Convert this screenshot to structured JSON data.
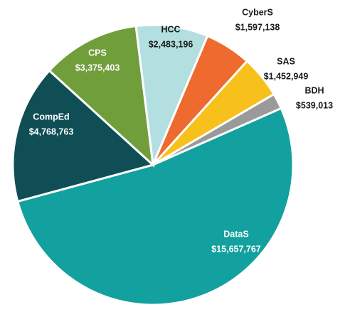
{
  "chart_data": {
    "type": "pie",
    "categories": [
      "HCC",
      "CyberS",
      "SAS",
      "BDH",
      "DataS",
      "CompEd",
      "CPS"
    ],
    "values": [
      2483196,
      1597138,
      1452949,
      539013,
      15657767,
      4768763,
      3375403
    ],
    "value_labels": [
      "$2,483,196",
      "$1,597,138",
      "$1,452,949",
      "$539,013",
      "$15,657,767",
      "$4,768,763",
      "$3,375,403"
    ],
    "colors": [
      "#b3dfe1",
      "#ee6a2f",
      "#f8c01a",
      "#9a9a9a",
      "#13a19f",
      "#104e56",
      "#6f9e3b"
    ]
  }
}
